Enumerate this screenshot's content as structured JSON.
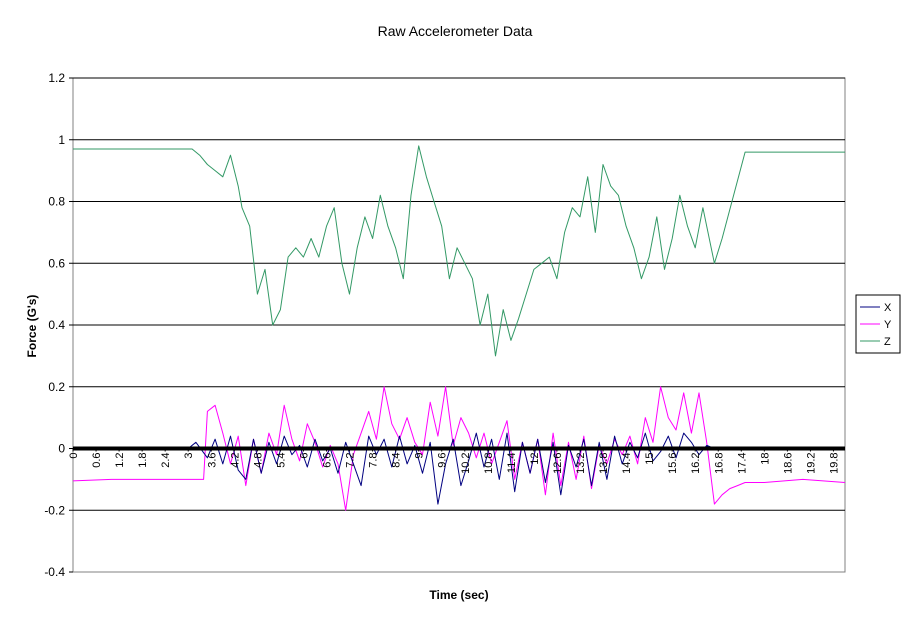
{
  "chart_data": {
    "type": "line",
    "title": "Raw Accelerometer Data",
    "xlabel": "Time (sec)",
    "ylabel": "Force (G's)",
    "xlim": [
      0,
      20.1
    ],
    "ylim": [
      -0.4,
      1.2
    ],
    "yticks": [
      -0.4,
      -0.2,
      0,
      0.2,
      0.4,
      0.6,
      0.8,
      1,
      1.2
    ],
    "ytick_labels": [
      "-0.4",
      "-0.2",
      "0",
      "0.2",
      "0.4",
      "0.6",
      "0.8",
      "1",
      "1.2"
    ],
    "xtick_labels": [
      "0",
      "0.6",
      "1.2",
      "1.8",
      "2.4",
      "3",
      "3.6",
      "4.2",
      "4.8",
      "5.4",
      "6",
      "6.6",
      "7.2",
      "7.8",
      "8.4",
      "9",
      "9.6",
      "10.2",
      "10.8",
      "11.4",
      "12",
      "12.6",
      "13.2",
      "13.8",
      "14.4",
      "15",
      "15.6",
      "16.2",
      "16.8",
      "17.4",
      "18",
      "18.6",
      "19.2",
      "19.8"
    ],
    "grid": "horizontal major gridlines",
    "legend": "right",
    "series": [
      {
        "name": "X",
        "color": "#000080",
        "x": [
          0,
          1,
          2,
          3,
          3.2,
          3.5,
          3.7,
          3.9,
          4.1,
          4.3,
          4.5,
          4.7,
          4.9,
          5.1,
          5.3,
          5.5,
          5.7,
          5.9,
          6.1,
          6.3,
          6.5,
          6.7,
          6.9,
          7.1,
          7.3,
          7.5,
          7.7,
          7.9,
          8.1,
          8.3,
          8.5,
          8.7,
          8.9,
          9.1,
          9.3,
          9.5,
          9.7,
          9.9,
          10.1,
          10.3,
          10.5,
          10.7,
          10.9,
          11.1,
          11.3,
          11.5,
          11.7,
          11.9,
          12.1,
          12.3,
          12.5,
          12.7,
          12.9,
          13.1,
          13.3,
          13.5,
          13.7,
          13.9,
          14.1,
          14.3,
          14.5,
          14.7,
          14.9,
          15.1,
          15.3,
          15.5,
          15.7,
          15.9,
          16.1,
          16.3,
          16.5,
          16.7,
          16.9,
          18,
          19,
          20.1
        ],
        "y": [
          0,
          0,
          0,
          0,
          0.02,
          -0.03,
          0.03,
          -0.05,
          0.04,
          -0.07,
          -0.1,
          0.03,
          -0.08,
          0.02,
          -0.05,
          0.04,
          -0.02,
          0.01,
          -0.06,
          0.03,
          -0.04,
          0,
          -0.08,
          0.02,
          -0.05,
          -0.12,
          0.04,
          -0.02,
          0.03,
          -0.06,
          0.04,
          -0.05,
          0.01,
          -0.08,
          0.02,
          -0.18,
          -0.05,
          0.03,
          -0.12,
          -0.04,
          0.05,
          -0.06,
          0.03,
          -0.1,
          0.05,
          -0.14,
          0.02,
          -0.08,
          0.03,
          -0.11,
          0.02,
          -0.15,
          0.01,
          -0.06,
          0.03,
          -0.12,
          0.02,
          -0.1,
          0.04,
          -0.05,
          0.02,
          -0.03,
          0.05,
          -0.04,
          -0.01,
          0.04,
          -0.03,
          0.05,
          0.02,
          -0.02,
          0.01,
          0,
          0,
          0,
          0,
          0
        ]
      },
      {
        "name": "Y",
        "color": "#ff00ff",
        "x": [
          0,
          1,
          2,
          3,
          3.4,
          3.5,
          3.7,
          3.9,
          4.1,
          4.3,
          4.5,
          4.7,
          4.9,
          5.1,
          5.3,
          5.5,
          5.7,
          5.9,
          6.1,
          6.3,
          6.5,
          6.7,
          6.9,
          7.1,
          7.3,
          7.5,
          7.7,
          7.9,
          8.1,
          8.3,
          8.5,
          8.7,
          8.9,
          9.1,
          9.3,
          9.5,
          9.7,
          9.9,
          10.1,
          10.3,
          10.5,
          10.7,
          10.9,
          11.1,
          11.3,
          11.5,
          11.7,
          11.9,
          12.1,
          12.3,
          12.5,
          12.7,
          12.9,
          13.1,
          13.3,
          13.5,
          13.7,
          13.9,
          14.1,
          14.3,
          14.5,
          14.7,
          14.9,
          15.1,
          15.3,
          15.5,
          15.7,
          15.9,
          16.1,
          16.3,
          16.5,
          16.7,
          16.9,
          17.1,
          17.3,
          17.5,
          18,
          19,
          20.1
        ],
        "y": [
          -0.105,
          -0.1,
          -0.1,
          -0.1,
          -0.1,
          0.12,
          0.14,
          0.05,
          -0.05,
          0.04,
          -0.12,
          0.03,
          -0.08,
          0.05,
          -0.02,
          0.14,
          0.03,
          -0.04,
          0.08,
          0.02,
          -0.06,
          0.01,
          -0.05,
          -0.2,
          -0.02,
          0.05,
          0.12,
          0.03,
          0.2,
          0.08,
          0.03,
          0.1,
          0.02,
          -0.02,
          0.15,
          0.04,
          0.2,
          0.01,
          0.1,
          0.05,
          -0.03,
          0.05,
          -0.05,
          0.02,
          0.09,
          -0.1,
          0.02,
          -0.08,
          0.03,
          -0.15,
          0.05,
          -0.12,
          0.02,
          -0.1,
          0.04,
          -0.13,
          0.01,
          -0.05,
          0.03,
          -0.02,
          0.04,
          -0.05,
          0.1,
          0.02,
          0.2,
          0.1,
          0.06,
          0.18,
          0.05,
          0.18,
          0.02,
          -0.18,
          -0.15,
          -0.13,
          -0.12,
          -0.11,
          -0.11,
          -0.1,
          -0.11
        ]
      },
      {
        "name": "Z",
        "color": "#339966",
        "x": [
          0,
          1,
          2,
          3,
          3.1,
          3.3,
          3.5,
          3.7,
          3.9,
          4.1,
          4.3,
          4.4,
          4.6,
          4.8,
          5.0,
          5.2,
          5.4,
          5.6,
          5.8,
          6.0,
          6.2,
          6.4,
          6.6,
          6.8,
          7.0,
          7.2,
          7.4,
          7.6,
          7.8,
          8.0,
          8.2,
          8.4,
          8.6,
          8.8,
          9.0,
          9.2,
          9.4,
          9.6,
          9.8,
          10.0,
          10.2,
          10.4,
          10.6,
          10.8,
          11.0,
          11.2,
          11.4,
          11.6,
          11.8,
          12.0,
          12.2,
          12.4,
          12.6,
          12.8,
          13.0,
          13.2,
          13.4,
          13.6,
          13.8,
          14.0,
          14.2,
          14.4,
          14.6,
          14.8,
          15.0,
          15.2,
          15.4,
          15.6,
          15.8,
          16.0,
          16.2,
          16.4,
          16.5,
          16.7,
          16.9,
          17.5,
          18.5,
          19.5,
          20.1
        ],
        "y": [
          0.97,
          0.97,
          0.97,
          0.97,
          0.97,
          0.95,
          0.92,
          0.9,
          0.88,
          0.95,
          0.85,
          0.78,
          0.72,
          0.5,
          0.58,
          0.4,
          0.45,
          0.62,
          0.65,
          0.62,
          0.68,
          0.62,
          0.72,
          0.78,
          0.6,
          0.5,
          0.65,
          0.75,
          0.68,
          0.82,
          0.72,
          0.65,
          0.55,
          0.82,
          0.98,
          0.88,
          0.8,
          0.72,
          0.55,
          0.65,
          0.6,
          0.55,
          0.4,
          0.5,
          0.3,
          0.45,
          0.35,
          0.42,
          0.5,
          0.58,
          0.6,
          0.62,
          0.55,
          0.7,
          0.78,
          0.75,
          0.88,
          0.7,
          0.92,
          0.85,
          0.82,
          0.72,
          0.65,
          0.55,
          0.62,
          0.75,
          0.58,
          0.68,
          0.82,
          0.72,
          0.65,
          0.78,
          0.72,
          0.6,
          0.68,
          0.96,
          0.96,
          0.96,
          0.96
        ]
      },
      {
        "name": "",
        "color": "#000000",
        "x": [
          0,
          20.1
        ],
        "y": [
          0,
          0
        ]
      }
    ]
  }
}
